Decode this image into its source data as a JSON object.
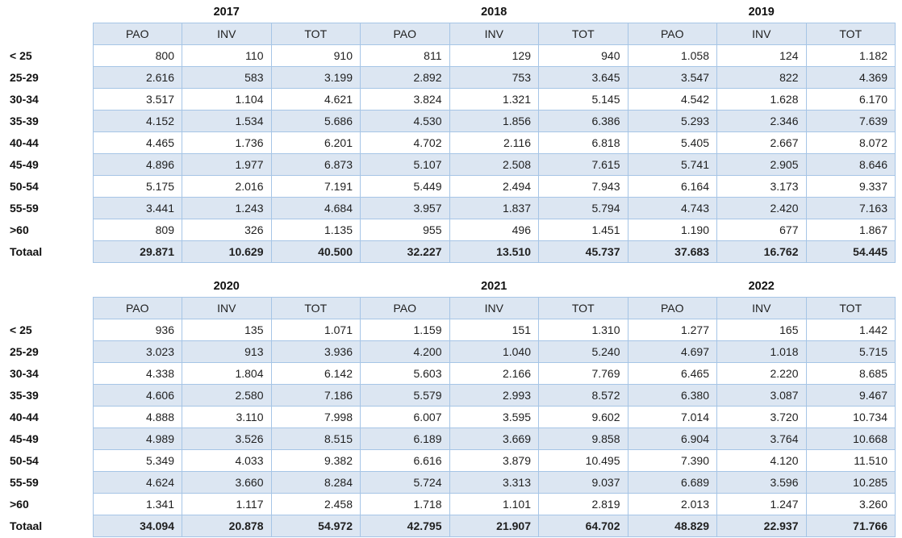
{
  "colors": {
    "cell_fill_blue": "#dce6f2",
    "cell_fill_white": "#ffffff",
    "grid_border": "#a6c5e6",
    "text": "#1f1f1f"
  },
  "chart_data": [
    {
      "type": "table",
      "year_groups": [
        "2017",
        "2018",
        "2019"
      ],
      "sub_columns": [
        "PAO",
        "INV",
        "TOT"
      ],
      "row_labels": [
        "< 25",
        "25-29",
        "30-34",
        "35-39",
        "40-44",
        "45-49",
        "50-54",
        "55-59",
        ">60",
        "Totaal"
      ],
      "rows": [
        [
          "800",
          "110",
          "910",
          "811",
          "129",
          "940",
          "1.058",
          "124",
          "1.182"
        ],
        [
          "2.616",
          "583",
          "3.199",
          "2.892",
          "753",
          "3.645",
          "3.547",
          "822",
          "4.369"
        ],
        [
          "3.517",
          "1.104",
          "4.621",
          "3.824",
          "1.321",
          "5.145",
          "4.542",
          "1.628",
          "6.170"
        ],
        [
          "4.152",
          "1.534",
          "5.686",
          "4.530",
          "1.856",
          "6.386",
          "5.293",
          "2.346",
          "7.639"
        ],
        [
          "4.465",
          "1.736",
          "6.201",
          "4.702",
          "2.116",
          "6.818",
          "5.405",
          "2.667",
          "8.072"
        ],
        [
          "4.896",
          "1.977",
          "6.873",
          "5.107",
          "2.508",
          "7.615",
          "5.741",
          "2.905",
          "8.646"
        ],
        [
          "5.175",
          "2.016",
          "7.191",
          "5.449",
          "2.494",
          "7.943",
          "6.164",
          "3.173",
          "9.337"
        ],
        [
          "3.441",
          "1.243",
          "4.684",
          "3.957",
          "1.837",
          "5.794",
          "4.743",
          "2.420",
          "7.163"
        ],
        [
          "809",
          "326",
          "1.135",
          "955",
          "496",
          "1.451",
          "1.190",
          "677",
          "1.867"
        ],
        [
          "29.871",
          "10.629",
          "40.500",
          "32.227",
          "13.510",
          "45.737",
          "37.683",
          "16.762",
          "54.445"
        ]
      ]
    },
    {
      "type": "table",
      "year_groups": [
        "2020",
        "2021",
        "2022"
      ],
      "sub_columns": [
        "PAO",
        "INV",
        "TOT"
      ],
      "row_labels": [
        "< 25",
        "25-29",
        "30-34",
        "35-39",
        "40-44",
        "45-49",
        "50-54",
        "55-59",
        ">60",
        "Totaal"
      ],
      "rows": [
        [
          "936",
          "135",
          "1.071",
          "1.159",
          "151",
          "1.310",
          "1.277",
          "165",
          "1.442"
        ],
        [
          "3.023",
          "913",
          "3.936",
          "4.200",
          "1.040",
          "5.240",
          "4.697",
          "1.018",
          "5.715"
        ],
        [
          "4.338",
          "1.804",
          "6.142",
          "5.603",
          "2.166",
          "7.769",
          "6.465",
          "2.220",
          "8.685"
        ],
        [
          "4.606",
          "2.580",
          "7.186",
          "5.579",
          "2.993",
          "8.572",
          "6.380",
          "3.087",
          "9.467"
        ],
        [
          "4.888",
          "3.110",
          "7.998",
          "6.007",
          "3.595",
          "9.602",
          "7.014",
          "3.720",
          "10.734"
        ],
        [
          "4.989",
          "3.526",
          "8.515",
          "6.189",
          "3.669",
          "9.858",
          "6.904",
          "3.764",
          "10.668"
        ],
        [
          "5.349",
          "4.033",
          "9.382",
          "6.616",
          "3.879",
          "10.495",
          "7.390",
          "4.120",
          "11.510"
        ],
        [
          "4.624",
          "3.660",
          "8.284",
          "5.724",
          "3.313",
          "9.037",
          "6.689",
          "3.596",
          "10.285"
        ],
        [
          "1.341",
          "1.117",
          "2.458",
          "1.718",
          "1.101",
          "2.819",
          "2.013",
          "1.247",
          "3.260"
        ],
        [
          "34.094",
          "20.878",
          "54.972",
          "42.795",
          "21.907",
          "64.702",
          "48.829",
          "22.937",
          "71.766"
        ]
      ]
    }
  ]
}
